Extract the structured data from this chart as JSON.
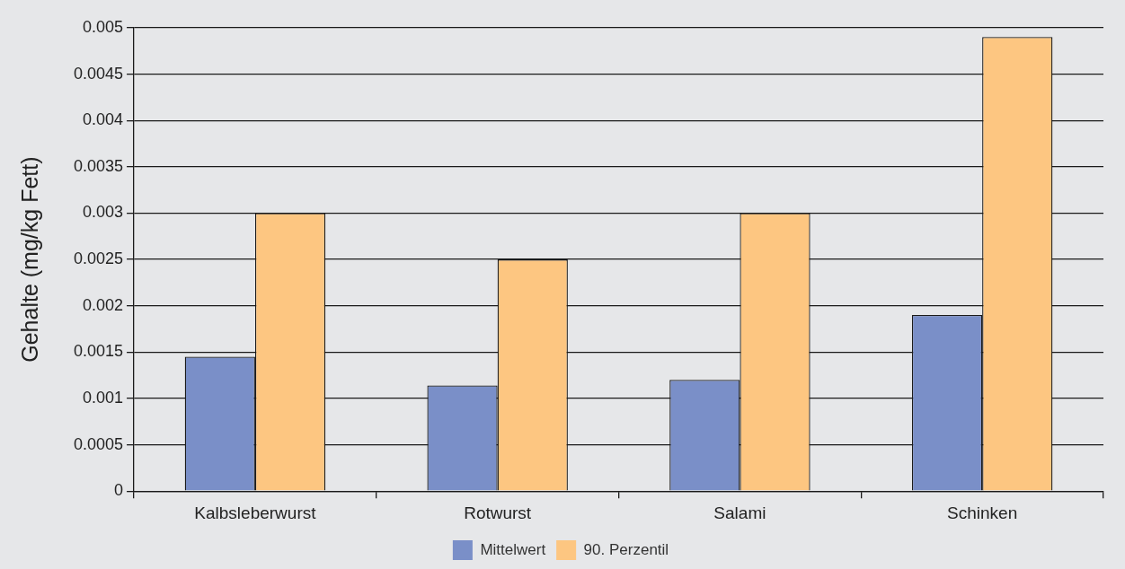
{
  "chart_data": {
    "type": "bar",
    "ylabel": "Gehalte (mg/kg Fett)",
    "categories": [
      "Kalbsleberwurst",
      "Rotwurst",
      "Salami",
      "Schinken"
    ],
    "series": [
      {
        "name": "Mittelwert",
        "color": "#7a8fc8",
        "values": [
          0.00145,
          0.00114,
          0.0012,
          0.0019
        ]
      },
      {
        "name": "90. Perzentil",
        "color": "#fdc681",
        "values": [
          0.003,
          0.0025,
          0.003,
          0.0049
        ]
      }
    ],
    "ylim": [
      0,
      0.005
    ],
    "yticks": [
      0,
      0.0005,
      0.001,
      0.0015,
      0.002,
      0.0025,
      0.003,
      0.0035,
      0.004,
      0.0045,
      0.005
    ],
    "grid": "y",
    "legend": "bottom"
  }
}
